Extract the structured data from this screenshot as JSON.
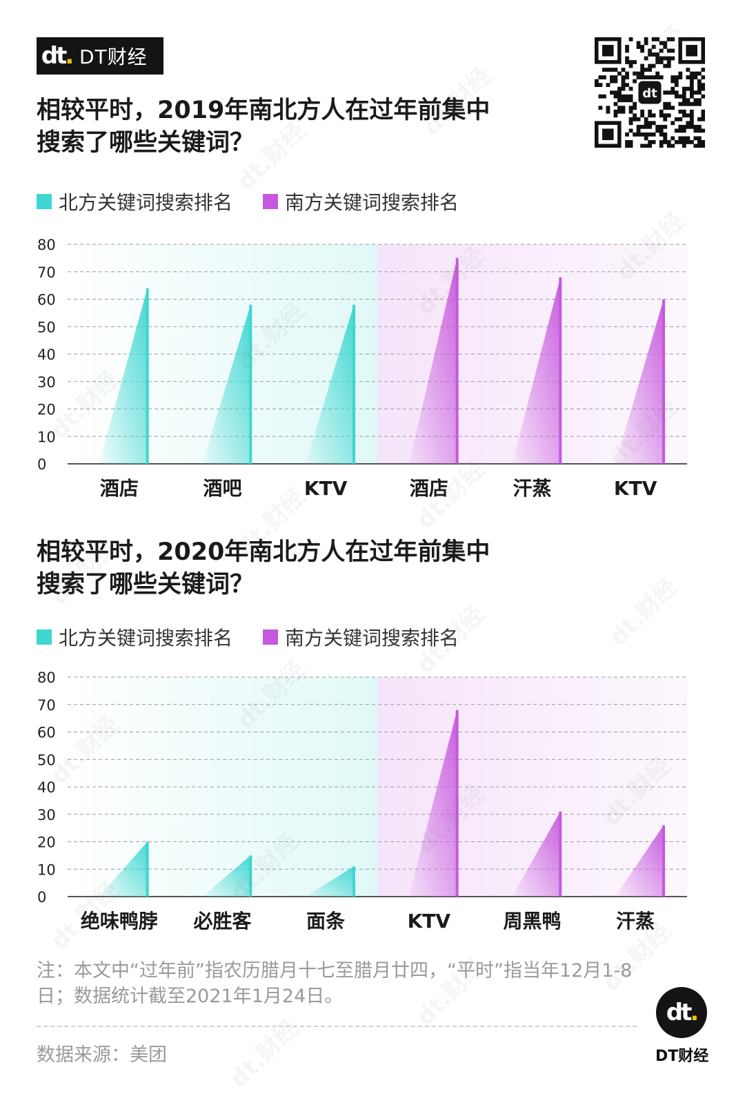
{
  "brand": {
    "logo": "dt",
    "name": "DT财经"
  },
  "qr_code": {
    "icon": "qr-code-icon"
  },
  "colors": {
    "north": "#3dd6d0",
    "south": "#c658dd",
    "north_bg": "#eafafa",
    "south_bg": "#fbeefc"
  },
  "charts": [
    {
      "title_line1": "相较平时，2019年南北方人在过年前集中",
      "title_line2": "搜索了哪些关键词？",
      "legend": {
        "north": "北方关键词搜索排名",
        "south": "南方关键词搜索排名"
      }
    },
    {
      "title_line1": "相较平时，2020年南北方人在过年前集中",
      "title_line2": "搜索了哪些关键词？",
      "legend": {
        "north": "北方关键词搜索排名",
        "south": "南方关键词搜索排名"
      }
    }
  ],
  "chart_data": [
    {
      "type": "bar",
      "title": "相较平时，2019年南北方人在过年前集中搜索了哪些关键词？",
      "categories": [
        "酒店",
        "酒吧",
        "KTV",
        "酒店",
        "汗蒸",
        "KTV"
      ],
      "region": [
        "north",
        "north",
        "north",
        "south",
        "south",
        "south"
      ],
      "values": [
        64,
        58,
        58,
        75,
        68,
        60
      ],
      "yticks": [
        0,
        10,
        20,
        30,
        40,
        50,
        60,
        70,
        80
      ],
      "ylim": [
        0,
        80
      ],
      "grid": true,
      "legend": [
        "北方关键词搜索排名",
        "南方关键词搜索排名"
      ]
    },
    {
      "type": "bar",
      "title": "相较平时，2020年南北方人在过年前集中搜索了哪些关键词？",
      "categories": [
        "绝味鸭脖",
        "必胜客",
        "面条",
        "KTV",
        "周黑鸭",
        "汗蒸"
      ],
      "region": [
        "north",
        "north",
        "north",
        "south",
        "south",
        "south"
      ],
      "values": [
        20,
        15,
        11,
        68,
        31,
        26
      ],
      "yticks": [
        0,
        10,
        20,
        30,
        40,
        50,
        60,
        70,
        80
      ],
      "ylim": [
        0,
        80
      ],
      "grid": true,
      "legend": [
        "北方关键词搜索排名",
        "南方关键词搜索排名"
      ]
    }
  ],
  "note": "注：本文中“过年前”指农历腊月十七至腊月廿四，“平时”指当年12月1-8日；数据统计截至2021年1月24日。",
  "source": "数据来源：美团",
  "footer": {
    "logo": "dt",
    "name": "DT财经"
  },
  "watermark": "dt.财经"
}
